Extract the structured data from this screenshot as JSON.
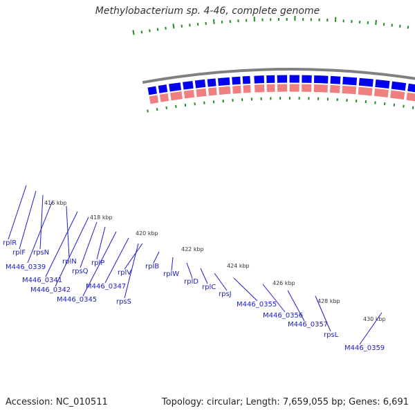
{
  "title": "Methylobacterium sp. 4-46, complete genome",
  "footer": {
    "accession": "Accession: NC_010511",
    "topology": "Topology: circular; Length: 7,659,055 bp; Genes: 6,691"
  },
  "colors": {
    "backbone": "#808080",
    "forward_gene": "#0000ee",
    "cds": "#f08080",
    "orange_gene": "#ff8c00",
    "ticks": "#228b22",
    "label": "#1a1acc"
  },
  "kbp_ticks": [
    "416 kbp",
    "418 kbp",
    "420 kbp",
    "422 kbp",
    "424 kbp",
    "426 kbp",
    "428 kbp",
    "430 kbp"
  ],
  "gene_labels": [
    "rplR",
    "rplF",
    "rpsN",
    "M446_0339",
    "rplN",
    "M446_0341",
    "M446_0342",
    "rpsQ",
    "rplP",
    "M446_0345",
    "M446_0347",
    "rplV",
    "rpsS",
    "rplB",
    "rplW",
    "rplD",
    "rplC",
    "rpsJ",
    "M446_0355",
    "M446_0356",
    "M446_0357",
    "rpsL",
    "M446_0359"
  ]
}
